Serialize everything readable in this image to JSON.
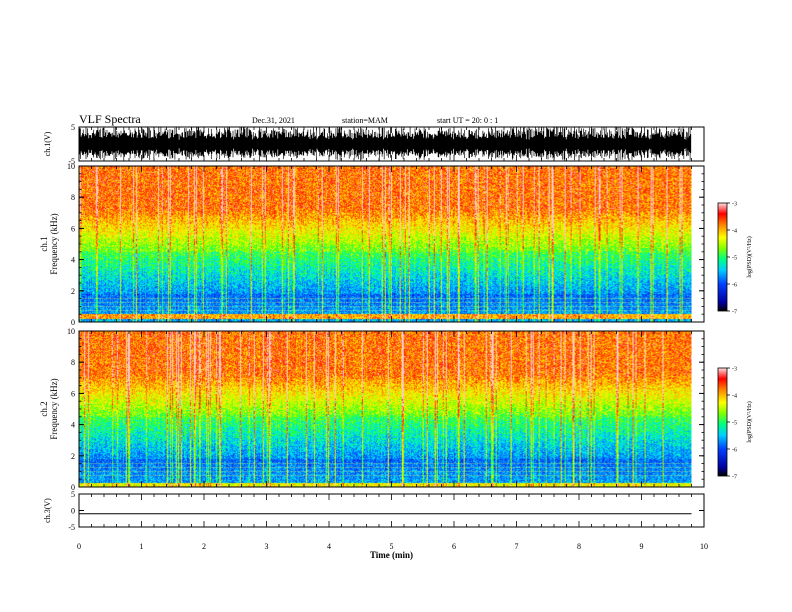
{
  "header": {
    "title": "VLF Spectra",
    "date": "Dec.31, 2021",
    "station": "station=MAM",
    "start": "start  UT =   20: 0  : 1"
  },
  "chart_data": [
    {
      "type": "line",
      "panel": "waveform-ch1",
      "ylabel": "ch.1(V)",
      "ylim": [
        -5,
        5
      ],
      "yticks": [
        5,
        -5
      ],
      "description_free": true
    },
    {
      "type": "heatmap",
      "panel": "spectrogram-ch1",
      "ylabel_line1": "ch.1",
      "ylabel_line2": "Frequency (kHz)",
      "ylim": [
        0,
        10
      ],
      "yticks": [
        0,
        2,
        4,
        6,
        8,
        10
      ],
      "colorbar": {
        "label": "log(PSD)(V²/Hz)",
        "range": [
          -7,
          -3
        ],
        "ticks": [
          "-3",
          "-4",
          "-5",
          "-6",
          "-7"
        ]
      }
    },
    {
      "type": "heatmap",
      "panel": "spectrogram-ch2",
      "ylabel_line1": "ch.2",
      "ylabel_line2": "Frequency (kHz)",
      "ylim": [
        0,
        10
      ],
      "yticks": [
        0,
        2,
        4,
        6,
        8,
        10
      ],
      "colorbar": {
        "label": "log(PSD)(V²/Hz)",
        "range": [
          -7,
          -3
        ],
        "ticks": [
          "-3",
          "-4",
          "-5",
          "-6",
          "-7"
        ]
      }
    },
    {
      "type": "line",
      "panel": "waveform-ch3",
      "ylabel": "ch.3(V)",
      "ylim": [
        -5,
        5
      ],
      "yticks": [
        5,
        0,
        -5
      ],
      "y": [
        -1,
        -1
      ]
    }
  ],
  "xaxis": {
    "label": "Time (min)",
    "xlim": [
      0,
      10
    ],
    "ticks": [
      "0",
      "1",
      "2",
      "3",
      "4",
      "5",
      "6",
      "7",
      "8",
      "9",
      "10"
    ],
    "data_end": 9.8
  },
  "colors": {
    "scale": [
      "#000080",
      "#0000ff",
      "#00aaff",
      "#00ffcc",
      "#33ff33",
      "#ccff00",
      "#ffff00",
      "#ff9900",
      "#ff0000",
      "#ffffff"
    ]
  }
}
